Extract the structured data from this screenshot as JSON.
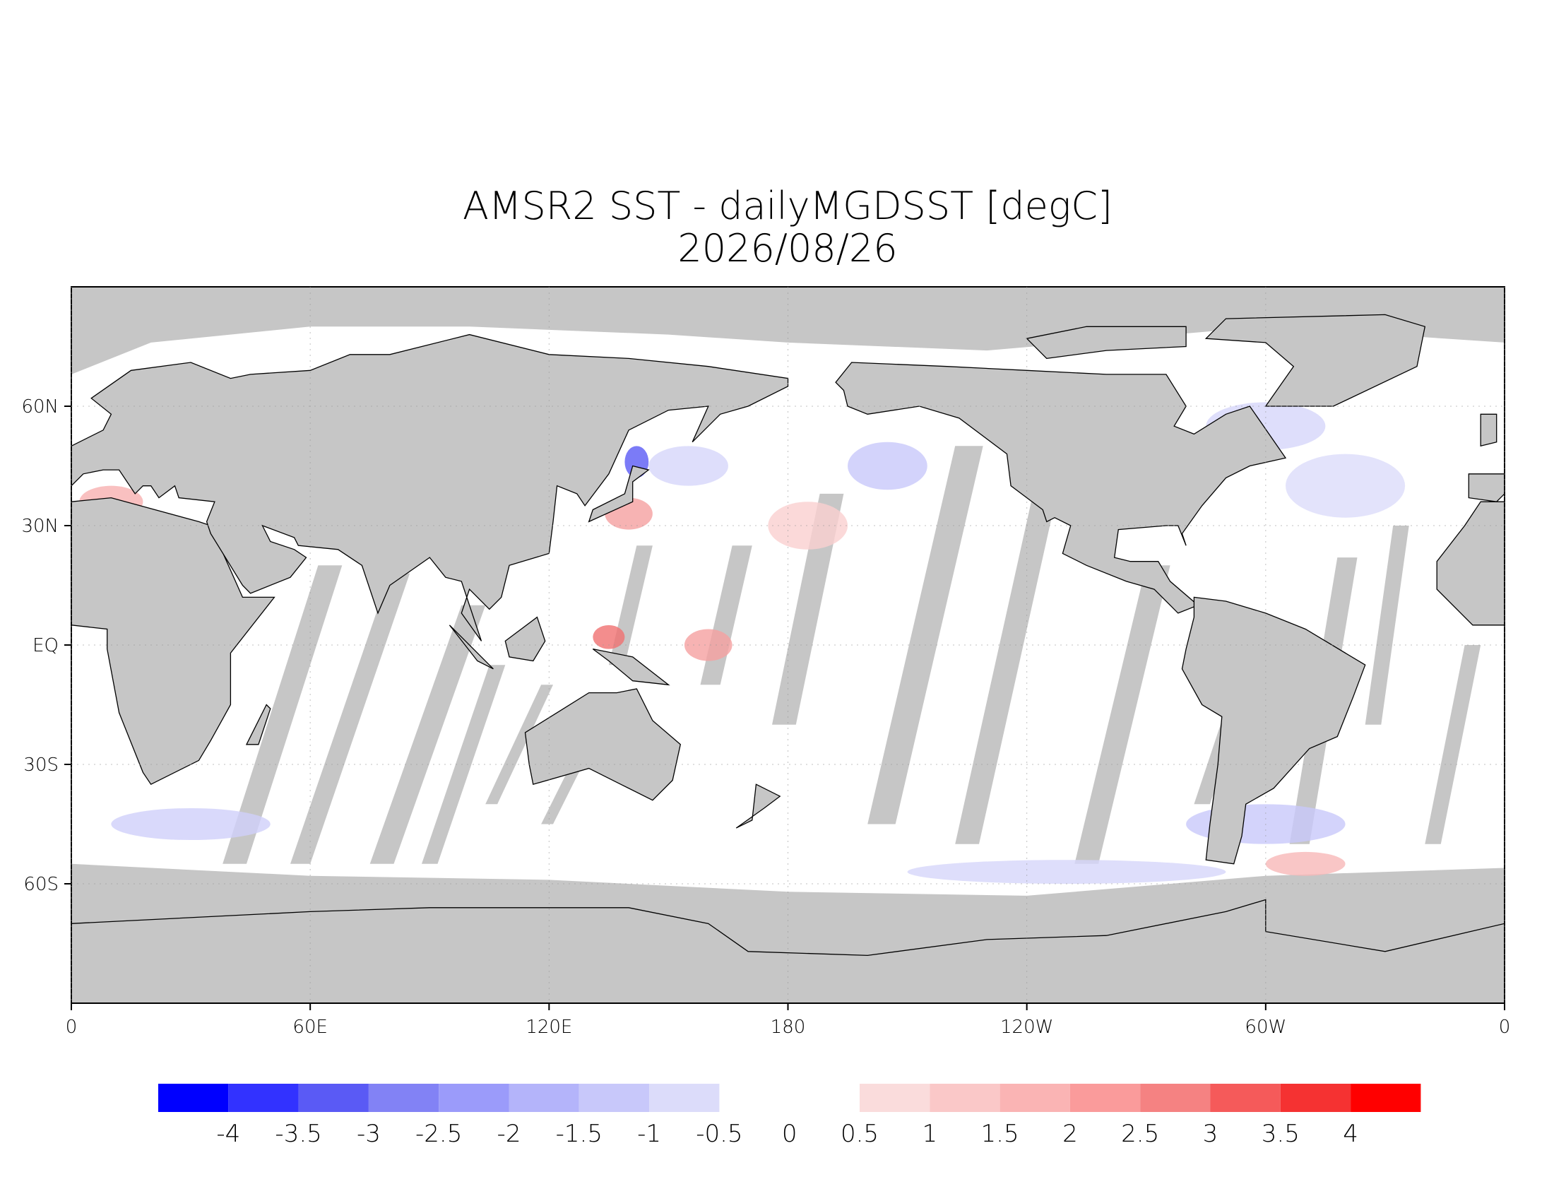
{
  "map": {
    "title": "AMSR2 SST - dailyMGDSST [degC]",
    "subtitle": "2026/08/26",
    "lonlim": [
      0,
      360
    ],
    "latlim": [
      -90,
      90
    ],
    "lon_ticks": [
      {
        "value": 0,
        "label": "0"
      },
      {
        "value": 60,
        "label": "60E"
      },
      {
        "value": 120,
        "label": "120E"
      },
      {
        "value": 180,
        "label": "180"
      },
      {
        "value": 240,
        "label": "120W"
      },
      {
        "value": 300,
        "label": "60W"
      },
      {
        "value": 360,
        "label": "0"
      }
    ],
    "lat_ticks": [
      {
        "value": 60,
        "label": "60N"
      },
      {
        "value": 30,
        "label": "30N"
      },
      {
        "value": 0,
        "label": "EQ"
      },
      {
        "value": -30,
        "label": "30S"
      },
      {
        "value": -60,
        "label": "60S"
      }
    ],
    "colorbar": {
      "levels": [
        -4,
        -3.5,
        -3,
        -2.5,
        -2,
        -1.5,
        -1,
        -0.5,
        0,
        0.5,
        1,
        1.5,
        2,
        2.5,
        3,
        3.5,
        4
      ],
      "colors": [
        "#0000ff",
        "#3232ff",
        "#5a5af5",
        "#8282f5",
        "#9b9bfa",
        "#b4b4fa",
        "#c8c8fa",
        "#dcdcfa",
        "#fadcdc",
        "#fac8c8",
        "#fab4b4",
        "#fa9b9b",
        "#f58282",
        "#f55a5a",
        "#f53232",
        "#ff0000"
      ]
    }
  }
}
